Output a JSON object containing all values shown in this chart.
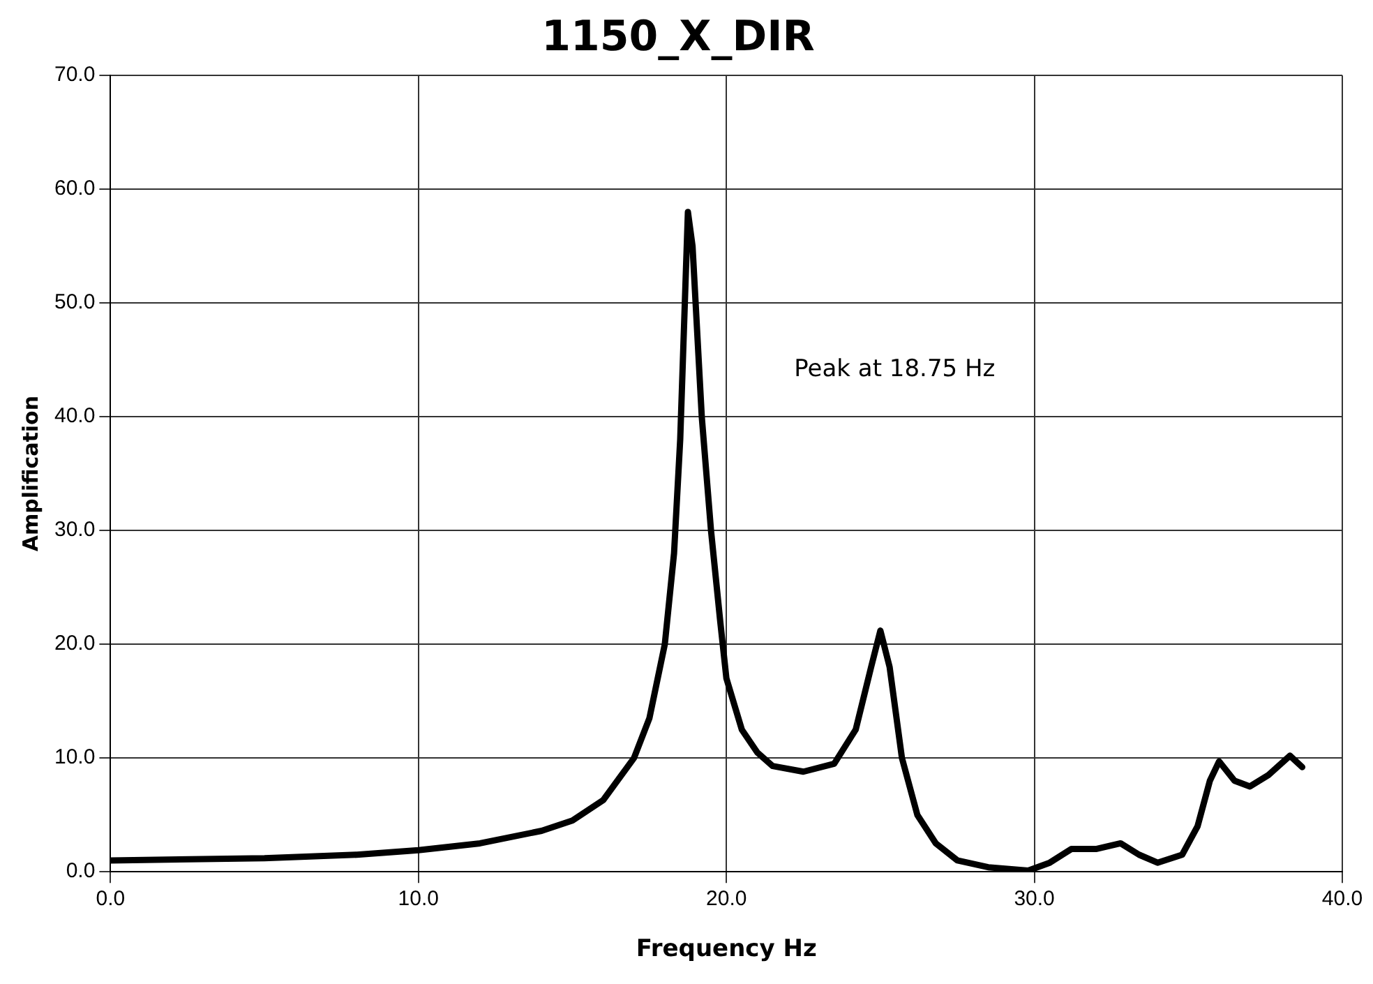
{
  "chart_data": {
    "type": "line",
    "title": "1150_X_DIR",
    "xlabel": "Frequency Hz",
    "ylabel": "Amplification",
    "annotations": [
      "Peak at 18.75 Hz"
    ],
    "x": [
      0,
      5,
      8,
      10,
      12,
      14,
      15,
      16,
      17,
      17.5,
      18,
      18.3,
      18.5,
      18.65,
      18.75,
      18.9,
      19.0,
      19.2,
      19.5,
      19.8,
      20.0,
      20.5,
      21,
      21.5,
      22.5,
      23.5,
      24.2,
      24.7,
      25.0,
      25.3,
      25.7,
      26.2,
      26.8,
      27.5,
      28.5,
      29.8,
      30.5,
      31.2,
      32,
      32.8,
      33.4,
      34,
      34.8,
      35.3,
      35.7,
      36.0,
      36.5,
      37,
      37.6,
      38.3,
      38.7
    ],
    "series": [
      {
        "color": "#000000",
        "values": [
          1.0,
          1.2,
          1.5,
          1.9,
          2.5,
          3.6,
          4.5,
          6.3,
          10,
          13.5,
          20,
          28,
          38,
          50,
          58,
          55,
          50,
          40,
          30,
          22,
          17,
          12.5,
          10.5,
          9.3,
          8.8,
          9.5,
          12.5,
          18,
          21.2,
          18,
          10,
          5,
          2.5,
          1.0,
          0.4,
          0.1,
          0.8,
          2.0,
          2.0,
          2.5,
          1.5,
          0.8,
          1.5,
          4,
          8,
          9.7,
          8.0,
          7.5,
          8.5,
          10.2,
          9.2
        ]
      }
    ],
    "xlim": [
      0,
      40
    ],
    "xticks": [
      {
        "value": 0,
        "label": "0.0"
      },
      {
        "value": 10,
        "label": "10.0"
      },
      {
        "value": 20,
        "label": "20.0"
      },
      {
        "value": 30,
        "label": "30.0"
      },
      {
        "value": 40,
        "label": "40.0"
      }
    ],
    "ylim": [
      0,
      70
    ],
    "yticks": [
      {
        "value": 0,
        "label": "0.0"
      },
      {
        "value": 10,
        "label": "10.0"
      },
      {
        "value": 20,
        "label": "20.0"
      },
      {
        "value": 30,
        "label": "30.0"
      },
      {
        "value": 40,
        "label": "40.0"
      },
      {
        "value": 50,
        "label": "50.0"
      },
      {
        "value": 60,
        "label": "60.0"
      },
      {
        "value": 70,
        "label": "70.0"
      }
    ],
    "grid": true,
    "legend": false,
    "marker": "none",
    "line_style": "solid"
  }
}
